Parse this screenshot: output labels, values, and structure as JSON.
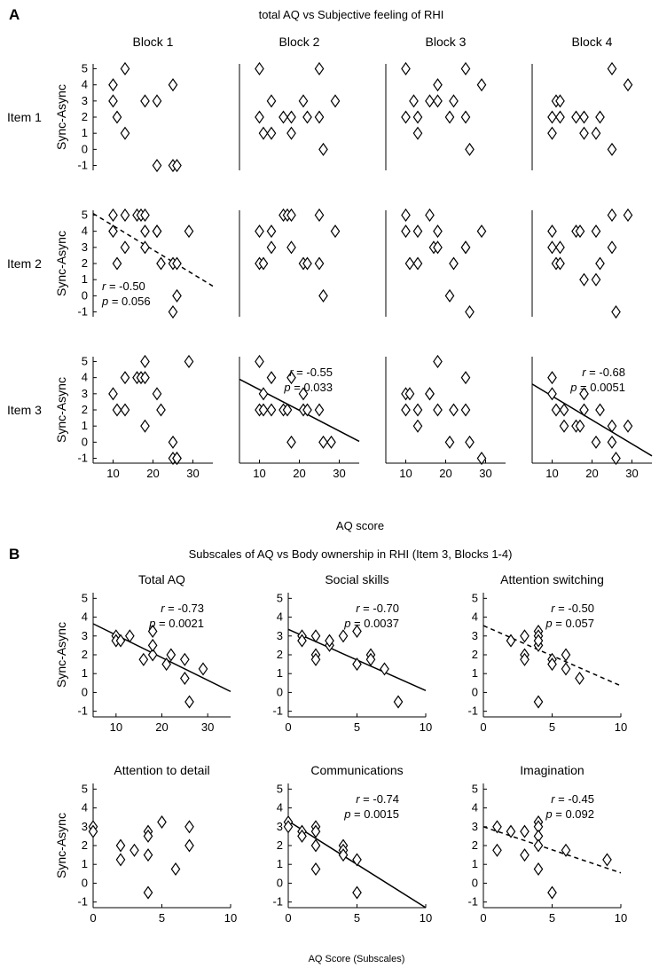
{
  "panels": {
    "A": {
      "label": "A",
      "title": "total AQ vs Subjective feeling of RHI",
      "xlabel": "AQ score",
      "ylabel": "Sync-Async",
      "xlim": [
        5,
        35
      ],
      "ylim": [
        -1.3,
        5.3
      ],
      "xticks": [
        10,
        20,
        30
      ],
      "yticks": [
        -1,
        0,
        1,
        2,
        3,
        4,
        5
      ],
      "columns": [
        "Block 1",
        "Block 2",
        "Block 3",
        "Block 4"
      ],
      "rows": [
        "Item 1",
        "Item 2",
        "Item 3"
      ]
    },
    "B": {
      "label": "B",
      "title": "Subscales of AQ vs Body ownership in RHI (Item 3, Blocks 1-4)",
      "xlabel": "AQ Score (Subscales)",
      "ylabel": "Sync-Async",
      "ylim": [
        -1.3,
        5.3
      ],
      "yticks": [
        -1,
        0,
        1,
        2,
        3,
        4,
        5
      ]
    }
  },
  "chart_data": [
    {
      "type": "scatter",
      "panel": "A",
      "column": "Block 1",
      "row": "Item 1",
      "x": [
        10,
        10,
        11,
        13,
        13,
        18,
        21,
        21,
        25,
        25,
        26
      ],
      "y": [
        4,
        3,
        2,
        5,
        1,
        3,
        3,
        -1,
        4,
        -1,
        -1
      ],
      "fit": null,
      "stats": null
    },
    {
      "type": "scatter",
      "panel": "A",
      "column": "Block 2",
      "row": "Item 1",
      "x": [
        10,
        10,
        11,
        13,
        13,
        16,
        18,
        18,
        21,
        22,
        25,
        25,
        26,
        29
      ],
      "y": [
        5,
        2,
        1,
        3,
        1,
        2,
        2,
        1,
        3,
        2,
        5,
        2,
        0,
        3
      ],
      "fit": null,
      "stats": null
    },
    {
      "type": "scatter",
      "panel": "A",
      "column": "Block 3",
      "row": "Item 1",
      "x": [
        10,
        10,
        12,
        13,
        13,
        16,
        18,
        18,
        21,
        22,
        25,
        25,
        26,
        29
      ],
      "y": [
        5,
        2,
        3,
        2,
        1,
        3,
        4,
        3,
        2,
        3,
        5,
        2,
        0,
        4
      ],
      "fit": null,
      "stats": null
    },
    {
      "type": "scatter",
      "panel": "A",
      "column": "Block 4",
      "row": "Item 1",
      "x": [
        10,
        10,
        11,
        12,
        12,
        16,
        18,
        18,
        21,
        22,
        25,
        25,
        29
      ],
      "y": [
        2,
        1,
        3,
        3,
        2,
        2,
        2,
        1,
        1,
        2,
        5,
        0,
        4
      ],
      "fit": null,
      "stats": null
    },
    {
      "type": "scatter",
      "panel": "A",
      "column": "Block 1",
      "row": "Item 2",
      "x": [
        10,
        10,
        11,
        13,
        13,
        16,
        17,
        18,
        18,
        18,
        21,
        21,
        22,
        25,
        25,
        26,
        26,
        29
      ],
      "y": [
        5,
        4,
        2,
        5,
        3,
        5,
        5,
        5,
        4,
        3,
        4,
        4,
        2,
        2,
        -1,
        0,
        2,
        4
      ],
      "fit": {
        "x": [
          5,
          35
        ],
        "y": [
          5.1,
          0.6
        ],
        "style": "dashed"
      },
      "stats": {
        "r": "-0.50",
        "p": "0.056",
        "position": "bottom-left"
      }
    },
    {
      "type": "scatter",
      "panel": "A",
      "column": "Block 2",
      "row": "Item 2",
      "x": [
        10,
        10,
        11,
        13,
        13,
        16,
        17,
        18,
        18,
        21,
        22,
        25,
        25,
        26,
        29
      ],
      "y": [
        4,
        2,
        2,
        4,
        3,
        5,
        5,
        5,
        3,
        2,
        2,
        5,
        2,
        0,
        4
      ],
      "fit": null,
      "stats": null
    },
    {
      "type": "scatter",
      "panel": "A",
      "column": "Block 3",
      "row": "Item 2",
      "x": [
        10,
        10,
        11,
        13,
        13,
        16,
        17,
        18,
        18,
        21,
        22,
        25,
        25,
        26,
        29
      ],
      "y": [
        5,
        4,
        2,
        4,
        2,
        5,
        3,
        4,
        3,
        0,
        2,
        3,
        3,
        -1,
        4
      ],
      "fit": null,
      "stats": null
    },
    {
      "type": "scatter",
      "panel": "A",
      "column": "Block 4",
      "row": "Item 2",
      "x": [
        10,
        10,
        11,
        12,
        12,
        16,
        17,
        18,
        21,
        21,
        22,
        25,
        25,
        26,
        29
      ],
      "y": [
        4,
        3,
        2,
        3,
        2,
        4,
        4,
        1,
        1,
        4,
        2,
        3,
        5,
        -1,
        5
      ],
      "fit": null,
      "stats": null
    },
    {
      "type": "scatter",
      "panel": "A",
      "column": "Block 1",
      "row": "Item 3",
      "x": [
        10,
        11,
        13,
        13,
        16,
        17,
        18,
        18,
        18,
        21,
        22,
        25,
        25,
        26,
        26,
        29
      ],
      "y": [
        3,
        2,
        4,
        2,
        4,
        4,
        5,
        4,
        1,
        3,
        2,
        0,
        -1,
        -1,
        -1,
        5
      ],
      "fit": null,
      "stats": null
    },
    {
      "type": "scatter",
      "panel": "A",
      "column": "Block 2",
      "row": "Item 3",
      "x": [
        10,
        10,
        11,
        11,
        13,
        13,
        16,
        17,
        18,
        18,
        21,
        21,
        22,
        25,
        26,
        28
      ],
      "y": [
        5,
        2,
        3,
        2,
        4,
        2,
        2,
        2,
        4,
        0,
        3,
        2,
        2,
        2,
        0,
        0
      ],
      "fit": {
        "x": [
          5,
          35
        ],
        "y": [
          3.9,
          0.05
        ],
        "style": "solid"
      },
      "stats": {
        "r": "-0.55",
        "p": "0.033",
        "position": "top-right"
      }
    },
    {
      "type": "scatter",
      "panel": "A",
      "column": "Block 3",
      "row": "Item 3",
      "x": [
        10,
        10,
        11,
        13,
        13,
        16,
        16,
        18,
        18,
        21,
        22,
        25,
        25,
        26,
        29
      ],
      "y": [
        3,
        2,
        3,
        2,
        1,
        3,
        3,
        5,
        2,
        0,
        2,
        4,
        2,
        0,
        -1
      ],
      "fit": null,
      "stats": null
    },
    {
      "type": "scatter",
      "panel": "A",
      "column": "Block 4",
      "row": "Item 3",
      "x": [
        10,
        10,
        11,
        13,
        13,
        16,
        17,
        18,
        18,
        21,
        22,
        25,
        25,
        26,
        29
      ],
      "y": [
        4,
        3,
        2,
        2,
        1,
        1,
        1,
        3,
        2,
        0,
        2,
        1,
        0,
        -1,
        1
      ],
      "fit": {
        "x": [
          5,
          35
        ],
        "y": [
          3.6,
          -0.85
        ],
        "style": "solid"
      },
      "stats": {
        "r": "-0.68",
        "p": "0.0051",
        "position": "top-right"
      }
    },
    {
      "type": "scatter",
      "panel": "B",
      "title": "Total AQ",
      "xlim": [
        5,
        35
      ],
      "xticks": [
        10,
        20,
        30
      ],
      "x": [
        10,
        10,
        11,
        13,
        16,
        18,
        18,
        18,
        21,
        22,
        25,
        25,
        26,
        29
      ],
      "y": [
        3,
        2.75,
        2.75,
        3,
        1.75,
        2,
        2.5,
        3.25,
        1.5,
        2,
        1.75,
        0.75,
        -0.5,
        1.25
      ],
      "fit": {
        "x": [
          5,
          35
        ],
        "y": [
          3.65,
          0.05
        ],
        "style": "solid"
      },
      "stats": {
        "r": "-0.73",
        "p": "0.0021",
        "position": "top-right"
      }
    },
    {
      "type": "scatter",
      "panel": "B",
      "title": "Social skills",
      "xlim": [
        0,
        10
      ],
      "xticks": [
        0,
        5,
        10
      ],
      "x": [
        1,
        1,
        2,
        2,
        2,
        3,
        3,
        4,
        5,
        5,
        6,
        6,
        7,
        8
      ],
      "y": [
        3,
        2.75,
        3,
        2,
        1.75,
        2.5,
        2.75,
        3,
        3.25,
        1.5,
        2,
        1.75,
        1.25,
        -0.5
      ],
      "fit": {
        "x": [
          0,
          10
        ],
        "y": [
          3.35,
          0.1
        ],
        "style": "solid"
      },
      "stats": {
        "r": "-0.70",
        "p": "0.0037",
        "position": "top-right"
      }
    },
    {
      "type": "scatter",
      "panel": "B",
      "title": "Attention switching",
      "xlim": [
        0,
        10
      ],
      "xticks": [
        0,
        5,
        10
      ],
      "x": [
        2,
        3,
        3,
        3,
        4,
        4,
        4,
        4,
        4,
        5,
        5,
        6,
        6,
        7
      ],
      "y": [
        2.75,
        3,
        2,
        1.75,
        3.25,
        3,
        2.5,
        2.75,
        -0.5,
        1.75,
        1.5,
        2,
        1.25,
        0.75
      ],
      "fit": {
        "x": [
          0,
          10
        ],
        "y": [
          3.55,
          0.35
        ],
        "style": "dashed"
      },
      "stats": {
        "r": "-0.50",
        "p": "0.057",
        "position": "top-right"
      }
    },
    {
      "type": "scatter",
      "panel": "B",
      "title": "Attention to detail",
      "xlim": [
        0,
        10
      ],
      "xticks": [
        0,
        5,
        10
      ],
      "x": [
        0,
        0,
        2,
        2,
        3,
        4,
        4,
        4,
        4,
        5,
        6,
        7,
        7
      ],
      "y": [
        3,
        2.75,
        2,
        1.25,
        1.75,
        2.75,
        2.5,
        1.5,
        -0.5,
        3.25,
        0.75,
        3,
        2
      ],
      "fit": null,
      "stats": null
    },
    {
      "type": "scatter",
      "panel": "B",
      "title": "Communications",
      "xlim": [
        0,
        10
      ],
      "xticks": [
        0,
        5,
        10
      ],
      "x": [
        0,
        0,
        1,
        1,
        2,
        2,
        2,
        2,
        4,
        4,
        4,
        5,
        5
      ],
      "y": [
        3.25,
        3,
        2.75,
        2.5,
        3,
        2.75,
        2,
        0.75,
        2,
        1.75,
        1.5,
        1.25,
        -0.5
      ],
      "fit": {
        "x": [
          0,
          10
        ],
        "y": [
          3.3,
          -1.3
        ],
        "style": "solid"
      },
      "stats": {
        "r": "-0.74",
        "p": "0.0015",
        "position": "top-right"
      }
    },
    {
      "type": "scatter",
      "panel": "B",
      "title": "Imagination",
      "xlim": [
        0,
        10
      ],
      "xticks": [
        0,
        5,
        10
      ],
      "x": [
        1,
        1,
        2,
        3,
        3,
        4,
        4,
        4,
        4,
        4,
        5,
        6,
        9
      ],
      "y": [
        3,
        1.75,
        2.75,
        2.75,
        1.5,
        3.25,
        3,
        2.5,
        2,
        0.75,
        -0.5,
        1.75,
        1.25
      ],
      "fit": {
        "x": [
          0,
          10
        ],
        "y": [
          3.0,
          0.55
        ],
        "style": "dashed"
      },
      "stats": {
        "r": "-0.45",
        "p": "0.092",
        "position": "top-right"
      }
    }
  ]
}
